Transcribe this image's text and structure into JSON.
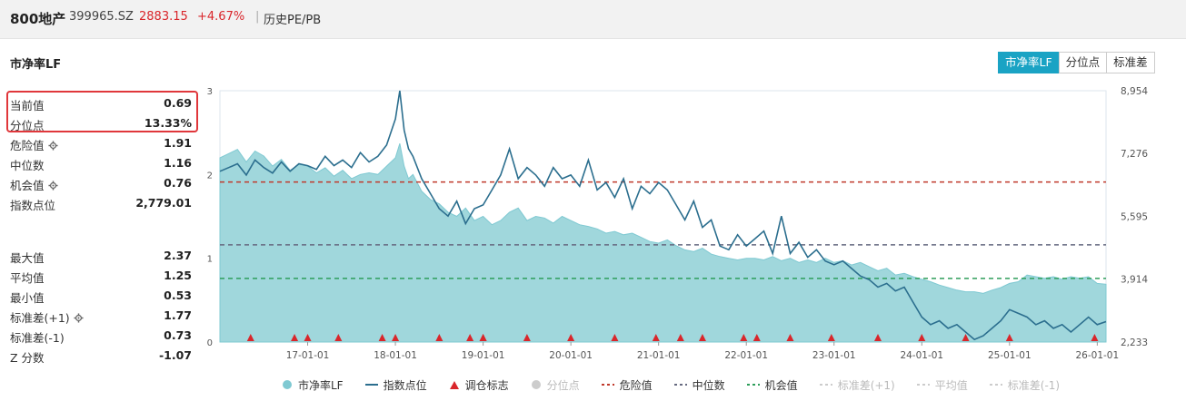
{
  "header": {
    "name": "800地产",
    "code": "399965.SZ",
    "price": "2883.15",
    "change": "+4.67%",
    "separator": "|",
    "view": "历史PE/PB"
  },
  "section_title": "市净率LF",
  "toggle": [
    "市净率LF",
    "分位点",
    "标准差"
  ],
  "toggle_active": 0,
  "stats": [
    {
      "label": "当前值",
      "value": "0.69",
      "gear": false
    },
    {
      "label": "分位点",
      "value": "13.33%",
      "gear": false
    },
    {
      "label": "危险值",
      "value": "1.91",
      "gear": true
    },
    {
      "label": "中位数",
      "value": "1.16",
      "gear": false
    },
    {
      "label": "机会值",
      "value": "0.76",
      "gear": true
    },
    {
      "label": "指数点位",
      "value": "2,779.01",
      "gear": false
    },
    {
      "label": "最大值",
      "value": "2.37",
      "gear": false
    },
    {
      "label": "平均值",
      "value": "1.25",
      "gear": false
    },
    {
      "label": "最小值",
      "value": "0.53",
      "gear": false
    },
    {
      "label": "标准差(+1)",
      "value": "1.77",
      "gear": true
    },
    {
      "label": "标准差(-1)",
      "value": "0.73",
      "gear": false
    },
    {
      "label": "Z 分数",
      "value": "-1.07",
      "gear": false
    }
  ],
  "legend": [
    {
      "label": "市净率LF",
      "kind": "dot",
      "color": "#7fc9d2",
      "off": false
    },
    {
      "label": "指数点位",
      "kind": "line",
      "color": "#2b6e8e",
      "off": false
    },
    {
      "label": "调仓标志",
      "kind": "triangle",
      "color": "#d9262b",
      "off": false
    },
    {
      "label": "分位点",
      "kind": "dot",
      "color": "#cccccc",
      "off": true
    },
    {
      "label": "危险值",
      "kind": "dash",
      "color": "#c0392b",
      "off": false
    },
    {
      "label": "中位数",
      "kind": "dash",
      "color": "#666a80",
      "off": false
    },
    {
      "label": "机会值",
      "kind": "dash",
      "color": "#2e9e5b",
      "off": false
    },
    {
      "label": "标准差(+1)",
      "kind": "dash",
      "color": "#cccccc",
      "off": true
    },
    {
      "label": "平均值",
      "kind": "dash",
      "color": "#cccccc",
      "off": true
    },
    {
      "label": "标准差(-1)",
      "kind": "dash",
      "color": "#cccccc",
      "off": true
    }
  ],
  "chart_data": {
    "type": "area",
    "x_ticks": [
      "17-01-01",
      "18-01-01",
      "19-01-01",
      "20-01-01",
      "21-01-01",
      "22-01-01",
      "23-01-01",
      "24-01-01",
      "25-01-01",
      "26-01-01"
    ],
    "y_left_ticks": [
      "0",
      "1",
      "2",
      "3"
    ],
    "y_left_range": [
      0,
      3
    ],
    "y_right_ticks": [
      "2,233",
      "3,914",
      "5,595",
      "7,276",
      "8,954"
    ],
    "y_right_range": [
      2233,
      8954
    ],
    "x_range": [
      2016.0,
      2026.1
    ],
    "reference_lines": {
      "danger": 1.91,
      "median": 1.16,
      "opportunity": 0.76
    },
    "series": [
      {
        "name": "市净率LF",
        "axis": "left",
        "x": [
          2016.0,
          2016.1,
          2016.2,
          2016.3,
          2016.4,
          2016.5,
          2016.6,
          2016.7,
          2016.8,
          2016.9,
          2017.0,
          2017.1,
          2017.2,
          2017.3,
          2017.4,
          2017.5,
          2017.6,
          2017.7,
          2017.8,
          2017.9,
          2018.0,
          2018.05,
          2018.1,
          2018.15,
          2018.2,
          2018.3,
          2018.4,
          2018.5,
          2018.6,
          2018.7,
          2018.8,
          2018.9,
          2019.0,
          2019.1,
          2019.2,
          2019.3,
          2019.4,
          2019.5,
          2019.6,
          2019.7,
          2019.8,
          2019.9,
          2020.0,
          2020.1,
          2020.2,
          2020.3,
          2020.4,
          2020.5,
          2020.6,
          2020.7,
          2020.8,
          2020.9,
          2021.0,
          2021.1,
          2021.2,
          2021.3,
          2021.4,
          2021.5,
          2021.6,
          2021.7,
          2021.8,
          2021.9,
          2022.0,
          2022.1,
          2022.2,
          2022.3,
          2022.4,
          2022.5,
          2022.6,
          2022.7,
          2022.8,
          2022.9,
          2023.0,
          2023.1,
          2023.2,
          2023.3,
          2023.4,
          2023.5,
          2023.6,
          2023.7,
          2023.8,
          2023.9,
          2024.0,
          2024.1,
          2024.2,
          2024.3,
          2024.4,
          2024.5,
          2024.6,
          2024.7,
          2024.8,
          2024.9,
          2025.0,
          2025.1,
          2025.2,
          2025.3,
          2025.4,
          2025.5,
          2025.6,
          2025.7,
          2025.8,
          2025.9,
          2026.0,
          2026.1
        ],
        "values": [
          2.2,
          2.25,
          2.3,
          2.15,
          2.28,
          2.22,
          2.1,
          2.18,
          2.05,
          2.12,
          2.1,
          2.02,
          2.08,
          1.98,
          2.05,
          1.95,
          2.0,
          2.02,
          2.0,
          2.1,
          2.2,
          2.37,
          2.1,
          1.95,
          2.0,
          1.8,
          1.7,
          1.65,
          1.55,
          1.5,
          1.6,
          1.45,
          1.5,
          1.4,
          1.45,
          1.55,
          1.6,
          1.45,
          1.5,
          1.48,
          1.42,
          1.5,
          1.45,
          1.4,
          1.38,
          1.35,
          1.3,
          1.32,
          1.28,
          1.3,
          1.25,
          1.2,
          1.18,
          1.22,
          1.15,
          1.1,
          1.08,
          1.12,
          1.05,
          1.02,
          1.0,
          0.98,
          1.0,
          1.0,
          0.98,
          1.02,
          0.97,
          1.0,
          0.95,
          0.98,
          0.95,
          1.0,
          0.95,
          0.97,
          0.92,
          0.95,
          0.9,
          0.85,
          0.88,
          0.8,
          0.82,
          0.78,
          0.75,
          0.72,
          0.68,
          0.65,
          0.62,
          0.6,
          0.6,
          0.58,
          0.62,
          0.65,
          0.7,
          0.72,
          0.8,
          0.78,
          0.76,
          0.78,
          0.75,
          0.78,
          0.76,
          0.78,
          0.7,
          0.69
        ]
      },
      {
        "name": "指数点位",
        "axis": "right",
        "x": [
          2016.0,
          2016.1,
          2016.2,
          2016.3,
          2016.4,
          2016.5,
          2016.6,
          2016.7,
          2016.8,
          2016.9,
          2017.0,
          2017.1,
          2017.2,
          2017.3,
          2017.4,
          2017.5,
          2017.6,
          2017.7,
          2017.8,
          2017.9,
          2018.0,
          2018.05,
          2018.1,
          2018.15,
          2018.2,
          2018.3,
          2018.4,
          2018.5,
          2018.6,
          2018.7,
          2018.8,
          2018.9,
          2019.0,
          2019.1,
          2019.2,
          2019.3,
          2019.4,
          2019.5,
          2019.6,
          2019.7,
          2019.8,
          2019.9,
          2020.0,
          2020.1,
          2020.2,
          2020.3,
          2020.4,
          2020.5,
          2020.6,
          2020.7,
          2020.8,
          2020.9,
          2021.0,
          2021.1,
          2021.2,
          2021.3,
          2021.4,
          2021.5,
          2021.6,
          2021.7,
          2021.8,
          2021.9,
          2022.0,
          2022.1,
          2022.2,
          2022.3,
          2022.4,
          2022.5,
          2022.6,
          2022.7,
          2022.8,
          2022.9,
          2023.0,
          2023.1,
          2023.2,
          2023.3,
          2023.4,
          2023.5,
          2023.6,
          2023.7,
          2023.8,
          2023.9,
          2024.0,
          2024.1,
          2024.2,
          2024.3,
          2024.4,
          2024.5,
          2024.6,
          2024.7,
          2024.8,
          2024.9,
          2025.0,
          2025.1,
          2025.2,
          2025.3,
          2025.4,
          2025.5,
          2025.6,
          2025.7,
          2025.8,
          2025.9,
          2026.0,
          2026.1
        ],
        "values": [
          6800,
          6900,
          7000,
          6700,
          7100,
          6900,
          6750,
          7050,
          6800,
          7000,
          6950,
          6850,
          7200,
          6950,
          7100,
          6900,
          7300,
          7050,
          7200,
          7500,
          8200,
          8954,
          7900,
          7400,
          7200,
          6600,
          6200,
          5800,
          5600,
          6000,
          5400,
          5800,
          5900,
          6300,
          6700,
          7400,
          6600,
          6900,
          6700,
          6400,
          6900,
          6600,
          6700,
          6400,
          7100,
          6300,
          6500,
          6100,
          6600,
          5800,
          6400,
          6200,
          6500,
          6300,
          5900,
          5500,
          6000,
          5300,
          5500,
          4800,
          4700,
          5100,
          4800,
          5000,
          5200,
          4600,
          5600,
          4600,
          4900,
          4500,
          4700,
          4400,
          4300,
          4400,
          4200,
          4000,
          3900,
          3700,
          3800,
          3600,
          3700,
          3300,
          2900,
          2700,
          2800,
          2600,
          2700,
          2500,
          2300,
          2400,
          2600,
          2800,
          3100,
          3000,
          2900,
          2700,
          2800,
          2600,
          2700,
          2500,
          2700,
          2900,
          2700,
          2780
        ]
      }
    ],
    "rebalance_x": [
      2016.35,
      2016.85,
      2017.0,
      2017.35,
      2017.85,
      2018.0,
      2018.5,
      2018.85,
      2019.0,
      2019.5,
      2019.0,
      2020.0,
      2020.5,
      2020.97,
      2021.25,
      2021.5,
      2021.97,
      2022.12,
      2022.5,
      2022.97,
      2023.5,
      2024.0,
      2024.5,
      2025.0,
      2025.97
    ]
  }
}
